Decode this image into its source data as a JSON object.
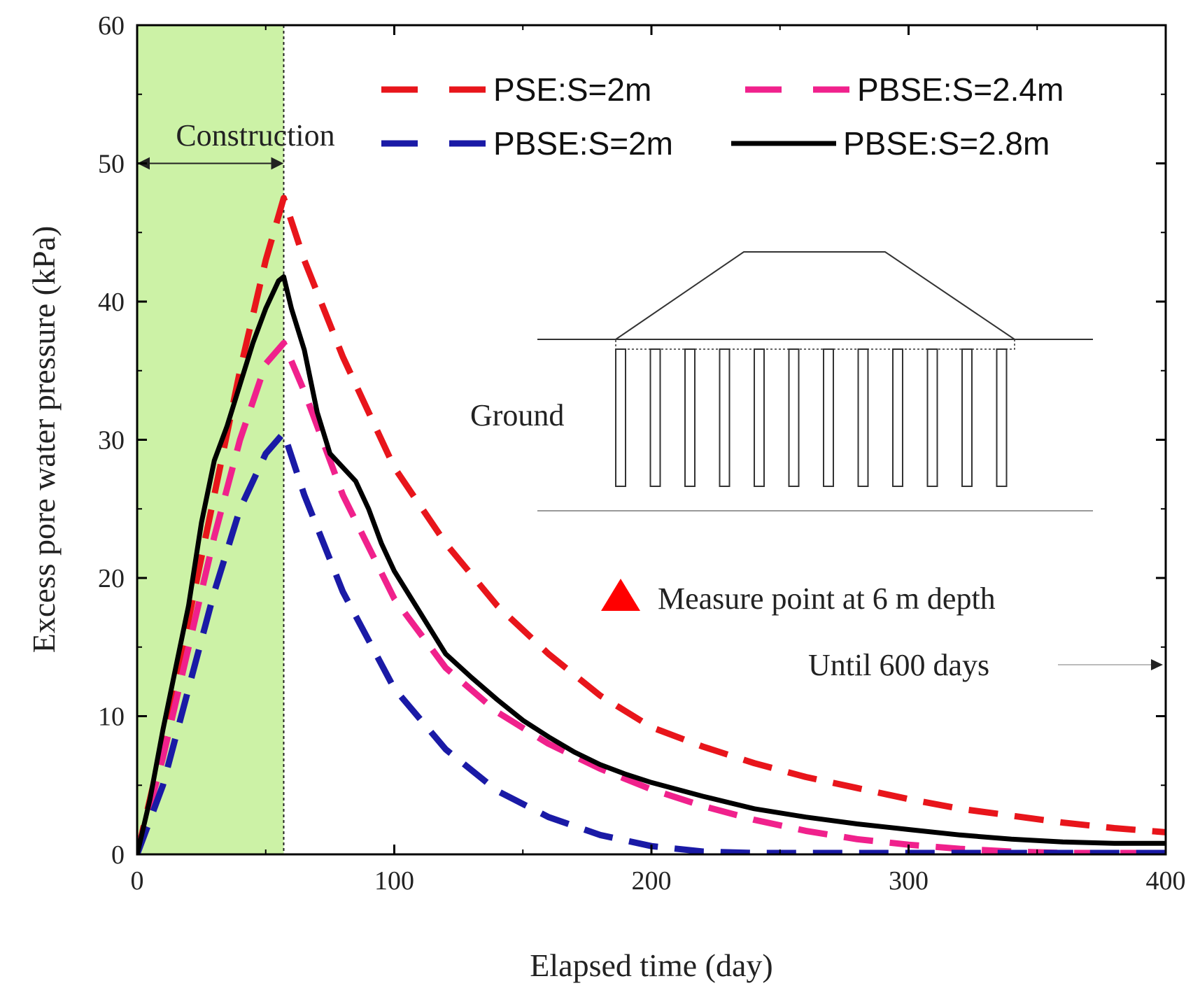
{
  "chart_data": {
    "type": "line",
    "title": "",
    "xlabel": "Elapsed time (day)",
    "ylabel": "Excess pore water pressure (kPa)",
    "xlim": [
      0,
      400
    ],
    "ylim": [
      0,
      60
    ],
    "xticks": [
      0,
      100,
      200,
      300,
      400
    ],
    "yticks": [
      0,
      10,
      20,
      30,
      40,
      50,
      60
    ],
    "grid": false,
    "legend_position": "top-right",
    "construction_period": [
      0,
      57
    ],
    "series": [
      {
        "name": "PSE:S=2m",
        "color": "#e8151b",
        "style": "dashed",
        "x": [
          0,
          10,
          20,
          30,
          40,
          50,
          57,
          65,
          80,
          100,
          120,
          140,
          160,
          180,
          200,
          220,
          240,
          260,
          280,
          300,
          320,
          340,
          360,
          380,
          400
        ],
        "y": [
          0,
          8,
          17,
          26,
          35,
          43,
          47.5,
          43,
          36,
          28,
          22.5,
          18,
          14.5,
          11.5,
          9.2,
          7.8,
          6.6,
          5.6,
          4.8,
          4.0,
          3.3,
          2.8,
          2.3,
          1.9,
          1.6
        ]
      },
      {
        "name": "PBSE:S=2.4m",
        "color": "#f0218c",
        "style": "dashed",
        "x": [
          0,
          10,
          20,
          30,
          40,
          50,
          57,
          65,
          80,
          100,
          120,
          140,
          160,
          180,
          200,
          220,
          240,
          260,
          280,
          300,
          320,
          340,
          360,
          380,
          400
        ],
        "y": [
          0,
          7,
          15,
          23,
          30,
          35.5,
          37,
          33.5,
          26,
          18.5,
          13.5,
          10.3,
          8.0,
          6.2,
          4.7,
          3.5,
          2.5,
          1.7,
          1.1,
          0.7,
          0.4,
          0.2,
          0.1,
          0.1,
          0.1
        ]
      },
      {
        "name": "PBSE:S=2m",
        "color": "#1a1aa6",
        "style": "dashed",
        "x": [
          0,
          10,
          20,
          30,
          40,
          50,
          57,
          65,
          80,
          100,
          120,
          140,
          160,
          180,
          200,
          220,
          240,
          260,
          280,
          300,
          320,
          340,
          360,
          380,
          400
        ],
        "y": [
          0,
          5,
          12,
          19,
          25,
          29,
          30.5,
          26,
          19,
          12,
          7.6,
          4.6,
          2.7,
          1.4,
          0.6,
          0.2,
          0.1,
          0.1,
          0.1,
          0.1,
          0.1,
          0.1,
          0.1,
          0.1,
          0.1
        ]
      },
      {
        "name": "PBSE:S=2.8m",
        "color": "#000000",
        "style": "solid",
        "x": [
          0,
          5,
          10,
          15,
          20,
          25,
          30,
          35,
          40,
          45,
          50,
          55,
          57,
          60,
          65,
          70,
          75,
          80,
          85,
          90,
          95,
          100,
          110,
          120,
          130,
          140,
          150,
          160,
          170,
          180,
          190,
          200,
          220,
          240,
          260,
          280,
          300,
          320,
          340,
          360,
          380,
          400
        ],
        "y": [
          0,
          4,
          9,
          13.5,
          18,
          24,
          28.5,
          31,
          34,
          37,
          39.5,
          41.5,
          41.8,
          39.5,
          36.5,
          32,
          29,
          28,
          27,
          25,
          22.5,
          20.5,
          17.5,
          14.5,
          12.8,
          11.2,
          9.7,
          8.5,
          7.4,
          6.5,
          5.8,
          5.2,
          4.2,
          3.3,
          2.7,
          2.2,
          1.8,
          1.4,
          1.1,
          0.9,
          0.8,
          0.8
        ]
      }
    ],
    "annotations": {
      "construction": "Construction",
      "ground": "Ground",
      "measure_point": "Measure point at 6 m depth",
      "until": "Until 600 days"
    },
    "marker_color": "#ff0000",
    "shade_color": "#ccf2a6"
  }
}
